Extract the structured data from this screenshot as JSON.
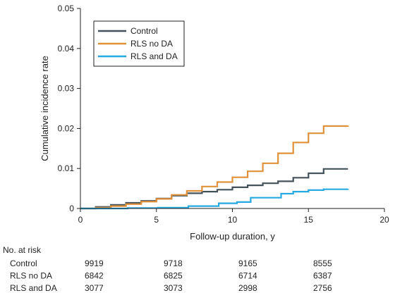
{
  "chart_data": {
    "type": "line",
    "xlabel": "Follow-up duration, y",
    "ylabel": "Cumulative incidence rate",
    "xlim": [
      0,
      20
    ],
    "ylim": [
      0,
      0.05
    ],
    "x_ticks": [
      "0",
      "5",
      "10",
      "15",
      "20"
    ],
    "y_ticks": [
      "0",
      "0.01",
      "0.02",
      "0.03",
      "0.04",
      "0.05"
    ],
    "grid": false,
    "legend_position": "top-left",
    "series": [
      {
        "name": "Control",
        "color": "#44525b",
        "points": [
          [
            0,
            0
          ],
          [
            1,
            0.0004
          ],
          [
            2,
            0.0009
          ],
          [
            3,
            0.0014
          ],
          [
            4,
            0.0019
          ],
          [
            5,
            0.0025
          ],
          [
            6,
            0.0032
          ],
          [
            7,
            0.0038
          ],
          [
            8,
            0.0042
          ],
          [
            9,
            0.0047
          ],
          [
            10,
            0.0053
          ],
          [
            11,
            0.0058
          ],
          [
            12,
            0.0063
          ],
          [
            13,
            0.0068
          ],
          [
            14,
            0.0077
          ],
          [
            15,
            0.0088
          ],
          [
            16,
            0.0099
          ],
          [
            17.6,
            0.0099
          ]
        ]
      },
      {
        "name": "RLS no DA",
        "color": "#e0913a",
        "points": [
          [
            0,
            0
          ],
          [
            1,
            0.0002
          ],
          [
            2,
            0.0006
          ],
          [
            3,
            0.0011
          ],
          [
            4,
            0.0017
          ],
          [
            5,
            0.0024
          ],
          [
            6,
            0.0034
          ],
          [
            7,
            0.0044
          ],
          [
            8,
            0.0055
          ],
          [
            9,
            0.0066
          ],
          [
            10,
            0.0078
          ],
          [
            11,
            0.0093
          ],
          [
            12,
            0.0113
          ],
          [
            13,
            0.0138
          ],
          [
            14,
            0.0165
          ],
          [
            15,
            0.0188
          ],
          [
            16,
            0.0206
          ],
          [
            17.6,
            0.0207
          ]
        ]
      },
      {
        "name": "RLS and DA",
        "color": "#27a9e1",
        "points": [
          [
            0,
            0
          ],
          [
            3,
            0
          ],
          [
            3.1,
            0.0001
          ],
          [
            5,
            0.0001
          ],
          [
            5.1,
            0.0002
          ],
          [
            7,
            0.0002
          ],
          [
            7.1,
            0.0006
          ],
          [
            9,
            0.0006
          ],
          [
            9.1,
            0.0013
          ],
          [
            10,
            0.0013
          ],
          [
            10.3,
            0.0016
          ],
          [
            11,
            0.0016
          ],
          [
            11.2,
            0.0027
          ],
          [
            12,
            0.0027
          ],
          [
            13,
            0.0027
          ],
          [
            13.2,
            0.0037
          ],
          [
            14,
            0.0042
          ],
          [
            15,
            0.0046
          ],
          [
            16,
            0.0048
          ],
          [
            17.6,
            0.0049
          ]
        ]
      }
    ]
  },
  "risk_table": {
    "title": "No. at risk",
    "rows": [
      {
        "label": "Control",
        "values": [
          "9919",
          "9718",
          "9165",
          "8555"
        ]
      },
      {
        "label": "RLS no DA",
        "values": [
          "6842",
          "6825",
          "6714",
          "6387"
        ]
      },
      {
        "label": "RLS and DA",
        "values": [
          "3077",
          "3073",
          "2998",
          "2756"
        ]
      }
    ]
  }
}
